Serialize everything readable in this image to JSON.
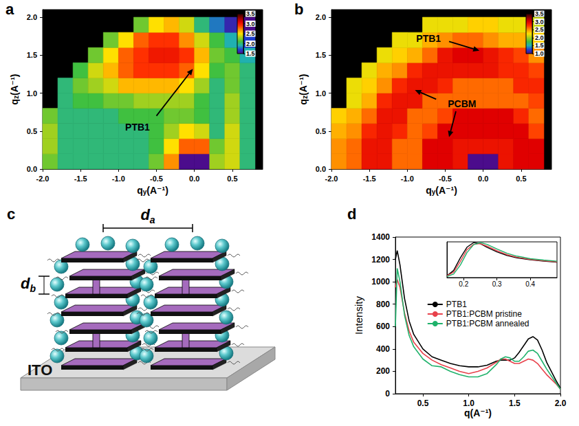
{
  "chart_data": [
    {
      "panel_label": "a",
      "type": "heatmap",
      "x_label": "qy(A⁻¹)",
      "y_label": "qz(A⁻¹)",
      "xlim": [
        -2.0,
        0.9
      ],
      "ylim": [
        0,
        2.1
      ],
      "xticks": [
        {
          "value": -2,
          "label": "-2.0"
        },
        -1.5,
        {
          "value": -1,
          "label": "-1.0"
        },
        -0.5,
        {
          "value": 0,
          "label": "0.0"
        },
        0.5
      ],
      "yticks": [
        {
          "value": 0,
          "label": "0.0"
        },
        0.5,
        {
          "value": 1,
          "label": "1.0"
        },
        1.5,
        {
          "value": 2,
          "label": "2.0"
        }
      ],
      "cells": {
        "x": [
          -1.9,
          -1.7,
          -1.5,
          -1.3,
          -1.1,
          -0.9,
          -0.7,
          -0.5,
          -0.3,
          -0.1,
          0.1,
          0.3,
          0.5,
          0.7
        ],
        "y": [
          0.1,
          0.3,
          0.5,
          0.7,
          0.9,
          1.1,
          1.3,
          1.5,
          1.7,
          1.9
        ],
        "values": [
          [
            2.2,
            2.0,
            2.0,
            2.0,
            2.0,
            2.0,
            2.0,
            2.2,
            2.7,
            1.5,
            1.5,
            2.3,
            2.4,
            2.0
          ],
          [
            2.3,
            2.0,
            2.0,
            2.0,
            2.0,
            2.0,
            2.0,
            2.1,
            2.5,
            2.8,
            2.8,
            2.2,
            2.4,
            2.0
          ],
          [
            2.3,
            2.0,
            2.0,
            2.0,
            2.0,
            2.0,
            2.0,
            2.1,
            2.3,
            2.5,
            2.4,
            2.0,
            2.4,
            2.0
          ],
          [
            2.2,
            2.0,
            2.0,
            2.0,
            2.0,
            2.1,
            2.1,
            2.1,
            2.2,
            2.2,
            2.1,
            2.0,
            2.3,
            2.0
          ],
          [
            null,
            2.0,
            2.1,
            2.1,
            2.2,
            2.2,
            2.3,
            2.3,
            2.3,
            2.3,
            2.1,
            2.0,
            2.3,
            2.0
          ],
          [
            null,
            2.0,
            2.2,
            2.3,
            2.4,
            2.6,
            2.6,
            2.6,
            2.6,
            2.5,
            2.3,
            2.0,
            2.2,
            2.0
          ],
          [
            null,
            null,
            2.1,
            2.4,
            2.6,
            2.8,
            2.9,
            2.9,
            2.9,
            2.8,
            2.5,
            2.1,
            2.2,
            2.0
          ],
          [
            null,
            null,
            null,
            2.2,
            2.5,
            2.8,
            2.9,
            3.0,
            3.0,
            2.9,
            2.6,
            2.2,
            2.1,
            1.9
          ],
          [
            null,
            null,
            null,
            null,
            2.2,
            2.5,
            2.8,
            2.9,
            2.9,
            2.7,
            2.4,
            2.1,
            1.9,
            1.7
          ],
          [
            null,
            null,
            null,
            null,
            null,
            null,
            2.2,
            2.5,
            2.6,
            2.4,
            2.0,
            1.8,
            1.6,
            1.5
          ]
        ]
      },
      "colorbar": {
        "range": [
          1.5,
          3.5
        ],
        "ticks": [
          1.5,
          {
            "value": 2,
            "label": "2.0"
          },
          2.5,
          {
            "value": 3,
            "label": "3.0"
          },
          3.5
        ]
      },
      "annotations": [
        {
          "text": "PTB1",
          "x": -0.75,
          "y": 0.55,
          "arrows": [
            {
              "from": [
                -0.5,
                0.7
              ],
              "to": [
                -0.02,
                1.32
              ]
            }
          ]
        }
      ]
    },
    {
      "panel_label": "b",
      "type": "heatmap",
      "x_label": "qy(A⁻¹)",
      "y_label": "qz(A⁻¹)",
      "xlim": [
        -2.0,
        0.9
      ],
      "ylim": [
        0,
        2.1
      ],
      "xticks": [
        {
          "value": -2,
          "label": "-2.0"
        },
        -1.5,
        {
          "value": -1,
          "label": "-1.0"
        },
        -0.5,
        {
          "value": 0,
          "label": "0.0"
        },
        0.5
      ],
      "yticks": [
        {
          "value": 0,
          "label": "0.0"
        },
        0.5,
        {
          "value": 1,
          "label": "1.0"
        },
        1.5,
        {
          "value": 2,
          "label": "2.0"
        }
      ],
      "cells": {
        "x": [
          -1.9,
          -1.7,
          -1.5,
          -1.3,
          -1.1,
          -0.9,
          -0.7,
          -0.5,
          -0.3,
          -0.1,
          0.1,
          0.3,
          0.5,
          0.7
        ],
        "y": [
          0.1,
          0.3,
          0.5,
          0.7,
          0.9,
          1.1,
          1.3,
          1.5,
          1.7,
          1.9
        ],
        "values": [
          [
            2.5,
            2.6,
            2.9,
            2.9,
            2.6,
            2.6,
            3.0,
            3.0,
            2.9,
            1.0,
            1.0,
            2.9,
            3.0,
            3.0
          ],
          [
            2.5,
            2.6,
            2.9,
            2.9,
            2.6,
            2.6,
            3.0,
            3.0,
            2.9,
            2.9,
            2.9,
            2.9,
            3.0,
            3.0
          ],
          [
            2.4,
            2.5,
            2.8,
            2.9,
            2.8,
            2.6,
            2.7,
            3.0,
            3.0,
            3.0,
            3.0,
            3.0,
            3.0,
            2.7
          ],
          [
            2.3,
            2.4,
            2.6,
            2.9,
            2.9,
            2.6,
            2.6,
            2.7,
            3.0,
            3.0,
            3.0,
            3.0,
            2.8,
            2.6
          ],
          [
            null,
            2.2,
            2.4,
            2.8,
            2.9,
            2.9,
            2.6,
            2.6,
            2.6,
            2.6,
            2.6,
            2.6,
            2.6,
            2.7
          ],
          [
            null,
            2.2,
            2.3,
            2.5,
            2.8,
            2.9,
            2.9,
            2.8,
            2.6,
            2.6,
            2.6,
            2.6,
            2.8,
            2.8
          ],
          [
            null,
            null,
            2.2,
            2.4,
            2.5,
            2.8,
            2.9,
            2.9,
            2.9,
            2.9,
            2.9,
            2.8,
            2.8,
            2.7
          ],
          [
            null,
            null,
            null,
            2.2,
            2.3,
            2.4,
            2.6,
            2.9,
            3.0,
            3.0,
            2.9,
            2.8,
            2.7,
            2.5
          ],
          [
            null,
            null,
            null,
            null,
            2.2,
            2.2,
            2.4,
            2.5,
            2.6,
            2.6,
            2.5,
            2.4,
            2.4,
            2.3
          ],
          [
            null,
            null,
            null,
            null,
            null,
            null,
            2.2,
            2.2,
            2.2,
            2.3,
            2.3,
            2.2,
            2.2,
            2.1
          ]
        ]
      },
      "colorbar": {
        "range": [
          1.0,
          3.5
        ],
        "ticks": [
          {
            "value": 1,
            "label": "1.0"
          },
          1.5,
          {
            "value": 2,
            "label": "2.0"
          },
          2.5,
          {
            "value": 3,
            "label": "3.0"
          },
          3.5
        ]
      },
      "annotations": [
        {
          "text": "PTB1",
          "x": -0.72,
          "y": 1.72,
          "arrows": [
            {
              "from": [
                -0.45,
                1.68
              ],
              "to": [
                -0.05,
                1.56
              ]
            }
          ]
        },
        {
          "text": "PCBM",
          "x": -0.28,
          "y": 0.86,
          "arrows": [
            {
              "from": [
                -0.62,
                0.92
              ],
              "to": [
                -0.9,
                1.04
              ]
            },
            {
              "from": [
                -0.36,
                0.76
              ],
              "to": [
                -0.45,
                0.42
              ]
            }
          ]
        }
      ]
    },
    {
      "panel_label": "d",
      "type": "line",
      "x_label": "q(A⁻¹)",
      "y_label": "Intensity",
      "xlim": [
        0.2,
        2.0
      ],
      "ylim": [
        0,
        1400
      ],
      "xticks": [
        0.5,
        {
          "value": 1,
          "label": "1.0"
        },
        1.5,
        {
          "value": 2,
          "label": "2.0"
        }
      ],
      "yticks": [
        0,
        200,
        400,
        600,
        800,
        1000,
        1200,
        1400
      ],
      "legend": "center",
      "x": [
        0.2,
        0.22,
        0.25,
        0.3,
        0.35,
        0.4,
        0.5,
        0.6,
        0.7,
        0.8,
        0.9,
        1.0,
        1.1,
        1.2,
        1.3,
        1.35,
        1.4,
        1.45,
        1.5,
        1.55,
        1.6,
        1.65,
        1.7,
        1.75,
        1.8,
        1.85,
        1.9,
        1.95,
        2.0
      ],
      "series": [
        {
          "name": "PTB1",
          "color": "#000000",
          "values": [
            1200,
            1280,
            1150,
            850,
            650,
            530,
            400,
            330,
            300,
            270,
            250,
            240,
            240,
            255,
            290,
            300,
            300,
            300,
            320,
            370,
            430,
            490,
            510,
            480,
            390,
            280,
            200,
            120,
            50
          ]
        },
        {
          "name": "PTB1:PCBM pristine",
          "color": "#e8414b",
          "values": [
            950,
            1020,
            950,
            720,
            560,
            460,
            360,
            300,
            260,
            230,
            200,
            180,
            200,
            230,
            280,
            310,
            310,
            290,
            270,
            270,
            290,
            310,
            300,
            270,
            220,
            170,
            130,
            90,
            40
          ]
        },
        {
          "name": "PTB1:PCBM annealed",
          "color": "#1fb26b",
          "values": [
            600,
            1120,
            1000,
            700,
            520,
            420,
            310,
            250,
            240,
            200,
            170,
            150,
            150,
            180,
            260,
            310,
            330,
            320,
            290,
            290,
            330,
            380,
            390,
            360,
            290,
            220,
            160,
            100,
            40
          ]
        }
      ],
      "inset": {
        "type": "line",
        "xlim": [
          0.15,
          0.48
        ],
        "ylim": [
          0,
          100
        ],
        "xticks": [
          0.2,
          0.3,
          0.4
        ],
        "tick_labels": "x",
        "x": [
          0.15,
          0.17,
          0.19,
          0.21,
          0.23,
          0.25,
          0.27,
          0.3,
          0.33,
          0.36,
          0.4,
          0.44,
          0.48
        ],
        "series": [
          {
            "name": "PTB1",
            "color": "#000000",
            "values": [
              5,
              20,
              55,
              85,
              98,
              95,
              85,
              72,
              62,
              55,
              50,
              46,
              43
            ]
          },
          {
            "name": "PTB1:PCBM pristine",
            "color": "#e8414b",
            "values": [
              5,
              15,
              45,
              78,
              93,
              95,
              88,
              75,
              64,
              57,
              51,
              47,
              44
            ]
          },
          {
            "name": "PTB1:PCBM annealed",
            "color": "#1fb26b",
            "values": [
              3,
              10,
              35,
              70,
              92,
              98,
              93,
              80,
              68,
              60,
              53,
              49,
              46
            ]
          }
        ]
      }
    }
  ],
  "diagram": {
    "panel_label": "c",
    "spacing_labels": [
      "da",
      "db"
    ],
    "substrate": "ITO"
  }
}
